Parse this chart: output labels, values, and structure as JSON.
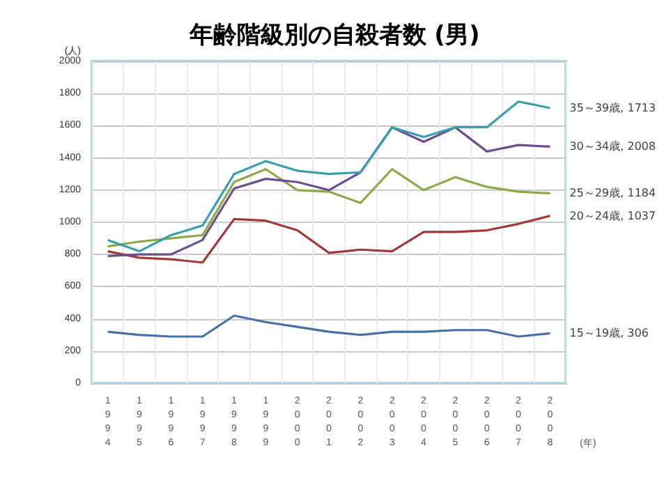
{
  "chart_data": {
    "type": "line",
    "title": "年齢階級別の自殺者数 (男)",
    "ylabel": "(人)",
    "xlabel": "(年)",
    "categories": [
      "1994",
      "1995",
      "1996",
      "1997",
      "1998",
      "1999",
      "2000",
      "2001",
      "2002",
      "2003",
      "2004",
      "2005",
      "2006",
      "2007",
      "2008"
    ],
    "series": [
      {
        "name": "15～19歳, 306",
        "color": "#4a6fa5",
        "values": [
          320,
          300,
          290,
          290,
          420,
          380,
          350,
          320,
          300,
          320,
          320,
          330,
          330,
          290,
          310
        ]
      },
      {
        "name": "20～24歳, 1037",
        "color": "#a0393a",
        "values": [
          820,
          780,
          770,
          750,
          1020,
          1010,
          950,
          810,
          830,
          820,
          940,
          940,
          950,
          990,
          1040
        ]
      },
      {
        "name": "25～29歳, 1184",
        "color": "#8fa848",
        "values": [
          850,
          880,
          900,
          920,
          1250,
          1330,
          1200,
          1190,
          1120,
          1330,
          1200,
          1280,
          1220,
          1190,
          1180
        ]
      },
      {
        "name": "30～34歳, 2008",
        "color": "#6a4f8f",
        "values": [
          790,
          800,
          800,
          890,
          1210,
          1270,
          1250,
          1200,
          1310,
          1590,
          1500,
          1590,
          1440,
          1480,
          1470
        ]
      },
      {
        "name": "35～39歳, 1713",
        "color": "#3a9db0",
        "values": [
          890,
          820,
          920,
          980,
          1300,
          1380,
          1320,
          1300,
          1310,
          1590,
          1530,
          1590,
          1590,
          1750,
          1710
        ]
      }
    ],
    "ylim": [
      0,
      2000
    ],
    "yticks": [
      0,
      200,
      400,
      600,
      800,
      1000,
      1200,
      1400,
      1600,
      1800,
      2000
    ],
    "grid": true,
    "legend": false,
    "marker": "none",
    "line_style": "solid"
  }
}
